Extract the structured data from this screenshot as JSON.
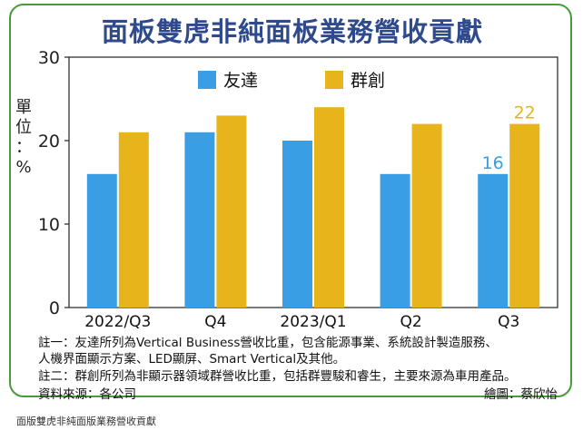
{
  "title": "面板雙虎非純面板業務營收貢獻",
  "chart_data": {
    "type": "bar",
    "categories": [
      "2022/Q3",
      "Q4",
      "2023/Q1",
      "Q2",
      "Q3"
    ],
    "series": [
      {
        "name": "友達",
        "values": [
          16,
          21,
          20,
          16,
          16
        ],
        "color": "#3a9ee4"
      },
      {
        "name": "群創",
        "values": [
          21,
          23,
          24,
          22,
          22
        ],
        "color": "#e8b41c"
      }
    ],
    "ylabel": "單位：%",
    "ylim": [
      0,
      30
    ],
    "yticks": [
      0,
      10,
      20,
      30
    ],
    "grid": false,
    "legend": "top-center",
    "data_labels": [
      {
        "series": 0,
        "index": 4,
        "text": "16",
        "color": "#3a9ee4"
      },
      {
        "series": 1,
        "index": 4,
        "text": "22",
        "color": "#e8b41c"
      }
    ]
  },
  "notes": {
    "note1_line1": "註一：友達所列為Vertical Business營收比重，包含能源事業、系統設計製造服務、",
    "note1_line2": "人機界面顯示方案、LED顯屏、Smart Vertical及其他。",
    "note2": "註二：群創所列為非顯示器領域群營收比重，包括群豐駿和睿生，主要來源為車用產品。",
    "source": "資料來源：各公司",
    "credit": "繪圖：蔡欣怡"
  },
  "caption": "面版雙虎非純面版業務營收貢獻"
}
